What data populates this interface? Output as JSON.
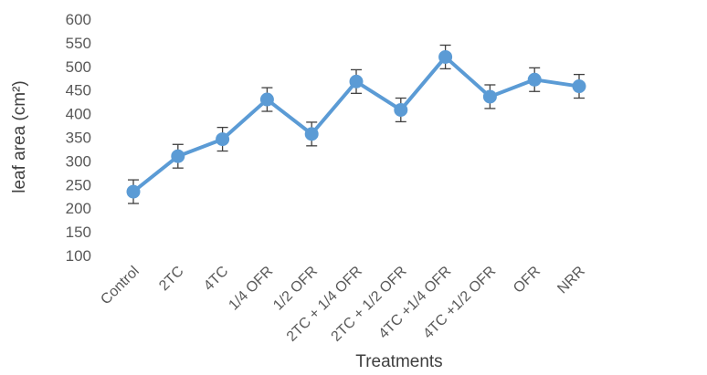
{
  "chart_data": {
    "type": "line",
    "title": "",
    "xlabel": "Treatments",
    "ylabel": "leaf area (cm²)",
    "ylim": [
      100,
      600
    ],
    "y_ticks": [
      "100",
      "150",
      "200",
      "250",
      "300",
      "350",
      "400",
      "450",
      "500",
      "550",
      "600"
    ],
    "categories": [
      "Control",
      "2TC",
      "4TC",
      "1/4 OFR",
      "1/2 OFR",
      "2TC + 1/4 OFR",
      "2TC + 1/2 OFR",
      "4TC +1/4 OFR",
      "4TC +1/2 OFR",
      "OFR",
      "NRR"
    ],
    "series": [
      {
        "values": [
          235,
          310,
          346,
          430,
          357,
          468,
          408,
          520,
          436,
          472,
          458
        ],
        "error": [
          25,
          25,
          25,
          25,
          25,
          25,
          25,
          25,
          25,
          25,
          25
        ],
        "color": "#5B9BD5"
      }
    ],
    "grid": false,
    "legend": "none"
  }
}
